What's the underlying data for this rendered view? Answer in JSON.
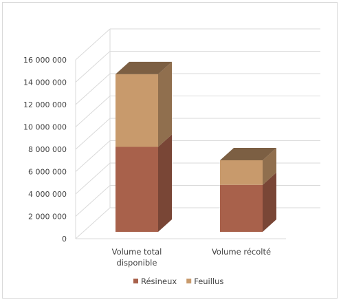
{
  "chart_data": {
    "type": "bar",
    "stacked": true,
    "three_d": true,
    "categories": [
      "Volume total disponible",
      "Volume récolté"
    ],
    "category_lines": [
      [
        "Volume total",
        "disponible"
      ],
      [
        "Volume récolté"
      ]
    ],
    "series": [
      {
        "name": "Résineux",
        "values": [
          7600000,
          4200000
        ],
        "color": "#a8614b"
      },
      {
        "name": "Feuillus",
        "values": [
          6500000,
          2200000
        ],
        "color": "#c89a6c"
      }
    ],
    "ylim": [
      0,
      16000000
    ],
    "y_ticks": [
      "0",
      "2 000 000",
      "4 000 000",
      "6 000 000",
      "8 000 000",
      "10 000 000",
      "12 000 000",
      "14 000 000",
      "16 000 000"
    ],
    "grid": true,
    "legend": "bottom",
    "title": "",
    "xlabel": "",
    "ylabel": ""
  }
}
